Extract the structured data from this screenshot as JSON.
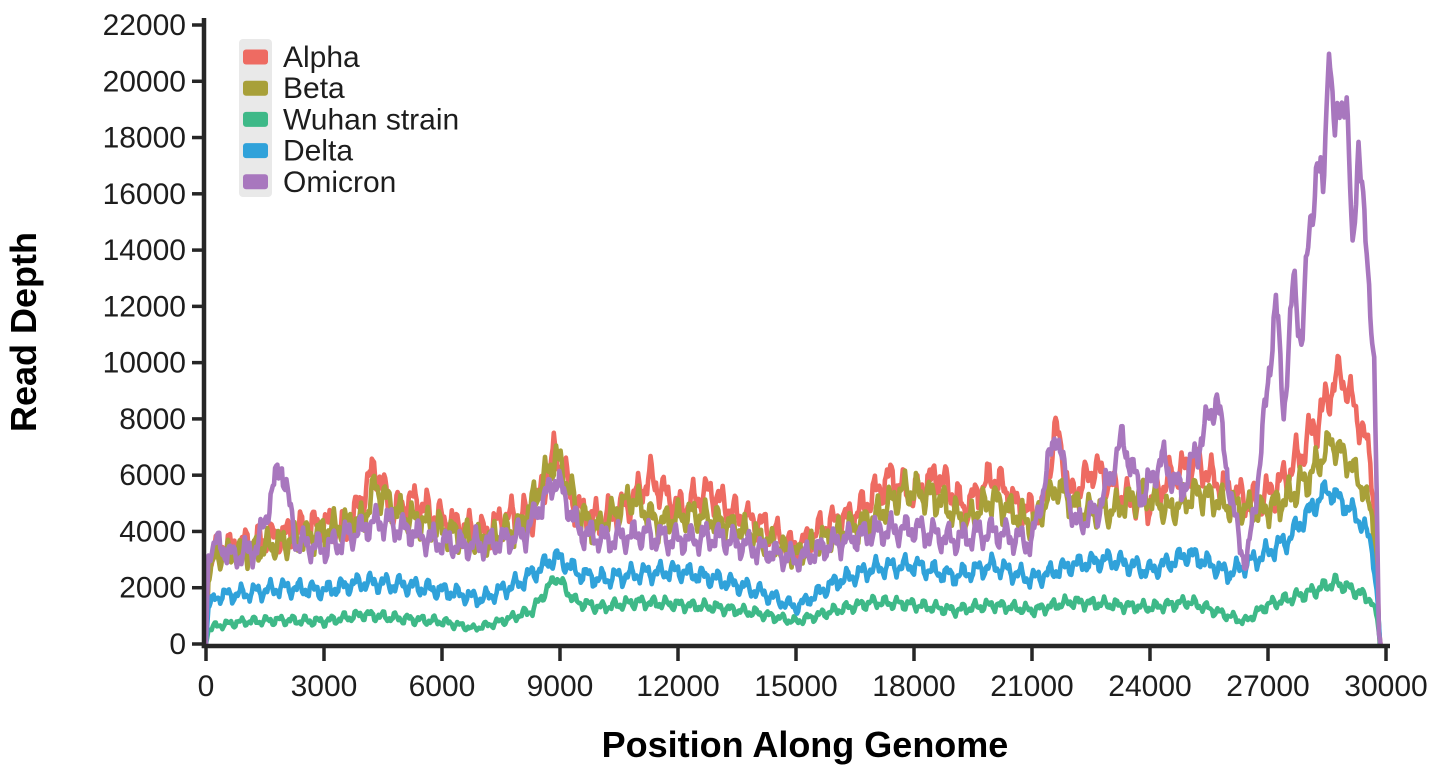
{
  "chart_data": {
    "type": "line",
    "title": "",
    "xlabel": "Position Along Genome",
    "ylabel": "Read Depth",
    "xlim": [
      0,
      30000
    ],
    "ylim": [
      0,
      22000
    ],
    "x_ticks": [
      0,
      3000,
      6000,
      9000,
      12000,
      15000,
      18000,
      21000,
      24000,
      27000,
      30000
    ],
    "y_ticks": [
      0,
      2000,
      4000,
      6000,
      8000,
      10000,
      12000,
      14000,
      16000,
      18000,
      20000,
      22000
    ],
    "grid": false,
    "legend_position": "upper-left",
    "colors": {
      "axis": "#262626",
      "text": "#1d1d1d",
      "legend_bg": "#e9e9e9",
      "background": "#ffffff"
    },
    "series": [
      {
        "name": "Alpha",
        "color": "#ee6b62",
        "seed": 11,
        "points": [
          [
            0,
            0,
            0
          ],
          [
            60,
            2600,
            300
          ],
          [
            250,
            3400,
            600
          ],
          [
            1000,
            3600,
            700
          ],
          [
            2000,
            3900,
            750
          ],
          [
            3000,
            4300,
            800
          ],
          [
            3600,
            4000,
            800
          ],
          [
            4300,
            6300,
            900
          ],
          [
            4700,
            4700,
            800
          ],
          [
            5300,
            5100,
            800
          ],
          [
            6000,
            4400,
            800
          ],
          [
            7000,
            3900,
            750
          ],
          [
            7600,
            4500,
            800
          ],
          [
            8300,
            4600,
            800
          ],
          [
            8900,
            6900,
            900
          ],
          [
            9400,
            4800,
            800
          ],
          [
            10000,
            4400,
            800
          ],
          [
            10700,
            4900,
            800
          ],
          [
            11300,
            5900,
            850
          ],
          [
            12000,
            4800,
            800
          ],
          [
            12800,
            5400,
            800
          ],
          [
            13500,
            4600,
            750
          ],
          [
            14200,
            4200,
            700
          ],
          [
            15000,
            3400,
            600
          ],
          [
            15700,
            4200,
            700
          ],
          [
            16500,
            4600,
            750
          ],
          [
            17400,
            5900,
            900
          ],
          [
            18000,
            5300,
            850
          ],
          [
            18600,
            6000,
            900
          ],
          [
            19300,
            4800,
            800
          ],
          [
            20000,
            6000,
            850
          ],
          [
            20700,
            4800,
            800
          ],
          [
            21300,
            4700,
            800
          ],
          [
            21600,
            7800,
            600
          ],
          [
            22000,
            5200,
            800
          ],
          [
            22600,
            6300,
            800
          ],
          [
            23300,
            5200,
            800
          ],
          [
            24000,
            5000,
            800
          ],
          [
            24600,
            6100,
            800
          ],
          [
            25200,
            6400,
            800
          ],
          [
            26000,
            5400,
            800
          ],
          [
            26700,
            5000,
            800
          ],
          [
            27400,
            5800,
            900
          ],
          [
            28000,
            7200,
            1000
          ],
          [
            28400,
            8300,
            1100
          ],
          [
            28800,
            9700,
            700
          ],
          [
            29100,
            8800,
            800
          ],
          [
            29400,
            7600,
            800
          ],
          [
            29600,
            6600,
            700
          ],
          [
            29750,
            4000,
            400
          ],
          [
            29820,
            500,
            100
          ],
          [
            29860,
            0,
            0
          ]
        ]
      },
      {
        "name": "Beta",
        "color": "#a8a039",
        "seed": 22,
        "points": [
          [
            0,
            0,
            0
          ],
          [
            60,
            2400,
            300
          ],
          [
            250,
            3100,
            550
          ],
          [
            1000,
            3300,
            650
          ],
          [
            2000,
            3600,
            700
          ],
          [
            3000,
            4000,
            750
          ],
          [
            4000,
            4400,
            750
          ],
          [
            4300,
            5600,
            800
          ],
          [
            5000,
            4500,
            750
          ],
          [
            6000,
            4100,
            750
          ],
          [
            7000,
            3600,
            700
          ],
          [
            8000,
            4200,
            750
          ],
          [
            8900,
            6700,
            800
          ],
          [
            9500,
            4600,
            750
          ],
          [
            10000,
            4100,
            700
          ],
          [
            10800,
            5200,
            750
          ],
          [
            11500,
            4300,
            700
          ],
          [
            12300,
            4600,
            700
          ],
          [
            13000,
            4400,
            700
          ],
          [
            14000,
            3800,
            650
          ],
          [
            15000,
            3200,
            550
          ],
          [
            16000,
            3900,
            650
          ],
          [
            17000,
            4500,
            750
          ],
          [
            17800,
            5500,
            800
          ],
          [
            18600,
            5200,
            800
          ],
          [
            19300,
            4300,
            700
          ],
          [
            20000,
            5200,
            750
          ],
          [
            21000,
            4200,
            700
          ],
          [
            21600,
            5600,
            700
          ],
          [
            22300,
            4700,
            700
          ],
          [
            23000,
            4700,
            700
          ],
          [
            23800,
            5400,
            750
          ],
          [
            24500,
            4700,
            700
          ],
          [
            25200,
            5400,
            750
          ],
          [
            26000,
            4900,
            700
          ],
          [
            26800,
            4700,
            700
          ],
          [
            27500,
            5200,
            800
          ],
          [
            28100,
            6000,
            850
          ],
          [
            28600,
            7200,
            700
          ],
          [
            29000,
            6600,
            700
          ],
          [
            29400,
            5600,
            650
          ],
          [
            29650,
            4500,
            500
          ],
          [
            29780,
            2000,
            200
          ],
          [
            29840,
            0,
            0
          ]
        ]
      },
      {
        "name": "Wuhan strain",
        "color": "#3eb988",
        "seed": 33,
        "points": [
          [
            0,
            0,
            0
          ],
          [
            60,
            500,
            100
          ],
          [
            250,
            650,
            180
          ],
          [
            1000,
            800,
            200
          ],
          [
            2000,
            850,
            220
          ],
          [
            3000,
            800,
            220
          ],
          [
            4000,
            1050,
            250
          ],
          [
            5000,
            900,
            230
          ],
          [
            6000,
            800,
            220
          ],
          [
            6800,
            550,
            150
          ],
          [
            7500,
            800,
            200
          ],
          [
            8300,
            1200,
            250
          ],
          [
            8900,
            2400,
            300
          ],
          [
            9400,
            1500,
            280
          ],
          [
            10000,
            1300,
            260
          ],
          [
            11000,
            1500,
            280
          ],
          [
            12000,
            1400,
            270
          ],
          [
            13000,
            1300,
            260
          ],
          [
            14000,
            1100,
            240
          ],
          [
            15000,
            800,
            200
          ],
          [
            16000,
            1200,
            250
          ],
          [
            17000,
            1500,
            280
          ],
          [
            18000,
            1400,
            270
          ],
          [
            19000,
            1200,
            250
          ],
          [
            20000,
            1400,
            270
          ],
          [
            21000,
            1200,
            250
          ],
          [
            22000,
            1500,
            280
          ],
          [
            23000,
            1400,
            270
          ],
          [
            24000,
            1300,
            260
          ],
          [
            25000,
            1500,
            280
          ],
          [
            25800,
            1100,
            230
          ],
          [
            26400,
            800,
            200
          ],
          [
            27000,
            1400,
            270
          ],
          [
            28000,
            1800,
            320
          ],
          [
            28700,
            2200,
            330
          ],
          [
            29200,
            1900,
            300
          ],
          [
            29600,
            1600,
            280
          ],
          [
            29780,
            900,
            150
          ],
          [
            29850,
            0,
            0
          ]
        ]
      },
      {
        "name": "Delta",
        "color": "#30a2da",
        "seed": 44,
        "points": [
          [
            0,
            0,
            0
          ],
          [
            60,
            1300,
            200
          ],
          [
            250,
            1700,
            350
          ],
          [
            1000,
            1800,
            380
          ],
          [
            2000,
            2000,
            400
          ],
          [
            3000,
            1900,
            400
          ],
          [
            4000,
            2200,
            420
          ],
          [
            5000,
            2100,
            420
          ],
          [
            6000,
            1900,
            400
          ],
          [
            7000,
            1600,
            350
          ],
          [
            8000,
            2200,
            420
          ],
          [
            8900,
            3100,
            450
          ],
          [
            9500,
            2500,
            420
          ],
          [
            10000,
            2300,
            420
          ],
          [
            11000,
            2500,
            430
          ],
          [
            12000,
            2600,
            430
          ],
          [
            13000,
            2300,
            420
          ],
          [
            14000,
            1900,
            380
          ],
          [
            15000,
            1300,
            300
          ],
          [
            16000,
            2200,
            400
          ],
          [
            17000,
            2700,
            430
          ],
          [
            18000,
            2800,
            440
          ],
          [
            19000,
            2400,
            420
          ],
          [
            20000,
            2800,
            440
          ],
          [
            21000,
            2300,
            420
          ],
          [
            22000,
            2800,
            440
          ],
          [
            23000,
            3000,
            450
          ],
          [
            24000,
            2600,
            430
          ],
          [
            25000,
            3200,
            460
          ],
          [
            26000,
            2500,
            430
          ],
          [
            26800,
            3100,
            460
          ],
          [
            27500,
            3700,
            500
          ],
          [
            28100,
            4800,
            550
          ],
          [
            28500,
            5500,
            500
          ],
          [
            29000,
            4900,
            500
          ],
          [
            29400,
            4300,
            480
          ],
          [
            29650,
            3400,
            400
          ],
          [
            29790,
            1500,
            200
          ],
          [
            29850,
            0,
            0
          ]
        ]
      },
      {
        "name": "Omicron",
        "color": "#a877be",
        "seed": 55,
        "points": [
          [
            0,
            0,
            0
          ],
          [
            60,
            3200,
            300
          ],
          [
            250,
            3600,
            600
          ],
          [
            700,
            3100,
            600
          ],
          [
            1300,
            3400,
            650
          ],
          [
            1900,
            6500,
            700
          ],
          [
            2300,
            3600,
            650
          ],
          [
            3000,
            3400,
            650
          ],
          [
            3700,
            3900,
            680
          ],
          [
            4400,
            4400,
            700
          ],
          [
            5000,
            4100,
            700
          ],
          [
            5700,
            3700,
            650
          ],
          [
            6500,
            3500,
            650
          ],
          [
            7300,
            3600,
            650
          ],
          [
            8100,
            3900,
            680
          ],
          [
            8900,
            5900,
            700
          ],
          [
            9500,
            4000,
            680
          ],
          [
            10200,
            3700,
            650
          ],
          [
            11000,
            3900,
            660
          ],
          [
            12000,
            3700,
            650
          ],
          [
            13000,
            3800,
            650
          ],
          [
            14000,
            3400,
            620
          ],
          [
            15000,
            3000,
            550
          ],
          [
            16000,
            3600,
            640
          ],
          [
            17000,
            4000,
            660
          ],
          [
            18000,
            4100,
            660
          ],
          [
            19000,
            3700,
            650
          ],
          [
            20000,
            4000,
            660
          ],
          [
            21000,
            3600,
            640
          ],
          [
            21600,
            7600,
            700
          ],
          [
            22100,
            4200,
            660
          ],
          [
            22700,
            4800,
            680
          ],
          [
            23300,
            7300,
            750
          ],
          [
            23800,
            5200,
            700
          ],
          [
            24300,
            6600,
            750
          ],
          [
            24800,
            5400,
            700
          ],
          [
            25300,
            7300,
            800
          ],
          [
            25700,
            8800,
            800
          ],
          [
            26100,
            4800,
            700
          ],
          [
            26450,
            2700,
            500
          ],
          [
            26800,
            6500,
            800
          ],
          [
            27200,
            12200,
            900
          ],
          [
            27400,
            8200,
            800
          ],
          [
            27650,
            12900,
            900
          ],
          [
            27850,
            10800,
            900
          ],
          [
            28050,
            14500,
            1100
          ],
          [
            28250,
            17200,
            1100
          ],
          [
            28400,
            15800,
            1100
          ],
          [
            28550,
            21500,
            600
          ],
          [
            28700,
            17800,
            1100
          ],
          [
            28850,
            19500,
            1000
          ],
          [
            29000,
            19200,
            900
          ],
          [
            29150,
            13800,
            1000
          ],
          [
            29300,
            18000,
            800
          ],
          [
            29450,
            14800,
            900
          ],
          [
            29600,
            12200,
            800
          ],
          [
            29700,
            10000,
            700
          ],
          [
            29760,
            5500,
            400
          ],
          [
            29820,
            300,
            100
          ],
          [
            29860,
            0,
            0
          ]
        ]
      }
    ]
  }
}
